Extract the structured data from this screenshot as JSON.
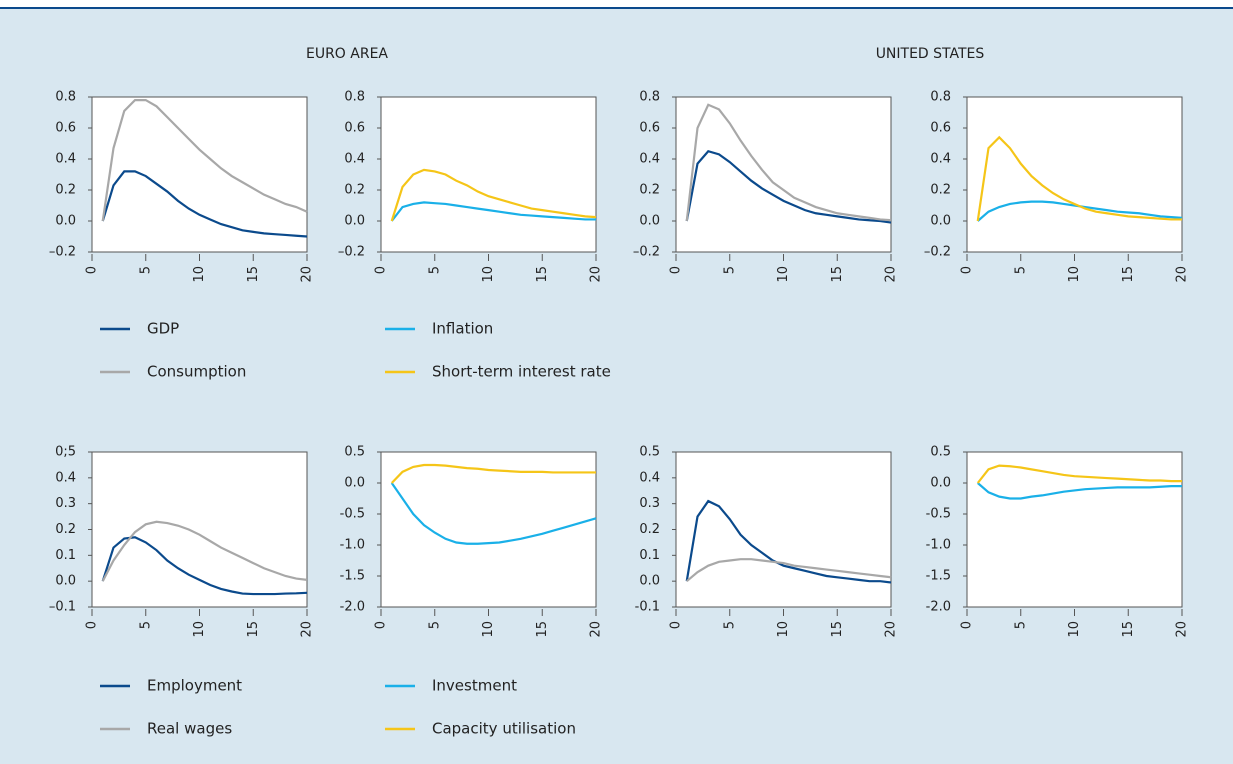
{
  "panel_titles": [
    "EURO AREA",
    "UNITED STATES"
  ],
  "chart_data": [
    {
      "type": "line",
      "x": [
        1,
        2,
        3,
        4,
        5,
        6,
        7,
        8,
        9,
        10,
        11,
        12,
        13,
        14,
        15,
        16,
        17,
        18,
        19,
        20
      ],
      "xlim": [
        0,
        20
      ],
      "xticks": [
        0,
        5,
        10,
        15,
        20
      ],
      "ylim": [
        -0.2,
        0.8
      ],
      "yticks": [
        {
          "value": -0.2,
          "label": "–0.2"
        },
        {
          "value": 0,
          "label": "0.0"
        },
        0.2,
        0.4,
        0.6,
        0.8
      ],
      "series": [
        {
          "name": "GDP",
          "color": "#0b4a8c",
          "values": [
            0,
            0.23,
            0.32,
            0.32,
            0.29,
            0.24,
            0.19,
            0.13,
            0.08,
            0.04,
            0.01,
            -0.02,
            -0.04,
            -0.06,
            -0.07,
            -0.08,
            -0.085,
            -0.09,
            -0.095,
            -0.1
          ]
        },
        {
          "name": "Consumption",
          "color": "#a8a8a8",
          "values": [
            0,
            0.47,
            0.71,
            0.78,
            0.78,
            0.74,
            0.67,
            0.6,
            0.53,
            0.46,
            0.4,
            0.34,
            0.29,
            0.25,
            0.21,
            0.17,
            0.14,
            0.11,
            0.09,
            0.06
          ]
        }
      ]
    },
    {
      "type": "line",
      "x": [
        1,
        2,
        3,
        4,
        5,
        6,
        7,
        8,
        9,
        10,
        11,
        12,
        13,
        14,
        15,
        16,
        17,
        18,
        19,
        20
      ],
      "xlim": [
        0,
        20
      ],
      "xticks": [
        0,
        5,
        10,
        15,
        20
      ],
      "ylim": [
        -0.2,
        0.8
      ],
      "yticks": [
        {
          "value": -0.2,
          "label": "–0.2"
        },
        {
          "value": 0,
          "label": "0.0"
        },
        0.2,
        0.4,
        0.6,
        0.8
      ],
      "series": [
        {
          "name": "Inflation",
          "color": "#1ab0e8",
          "values": [
            0,
            0.09,
            0.11,
            0.12,
            0.115,
            0.11,
            0.1,
            0.09,
            0.08,
            0.07,
            0.06,
            0.05,
            0.04,
            0.035,
            0.03,
            0.025,
            0.02,
            0.015,
            0.01,
            0.01
          ]
        },
        {
          "name": "Short-term interest rate",
          "color": "#f5c518",
          "values": [
            0,
            0.22,
            0.3,
            0.33,
            0.32,
            0.3,
            0.26,
            0.23,
            0.19,
            0.16,
            0.14,
            0.12,
            0.1,
            0.08,
            0.07,
            0.06,
            0.05,
            0.04,
            0.03,
            0.025
          ]
        }
      ]
    },
    {
      "type": "line",
      "x": [
        1,
        2,
        3,
        4,
        5,
        6,
        7,
        8,
        9,
        10,
        11,
        12,
        13,
        14,
        15,
        16,
        17,
        18,
        19,
        20
      ],
      "xlim": [
        0,
        20
      ],
      "xticks": [
        0,
        5,
        10,
        15,
        20
      ],
      "ylim": [
        -0.2,
        0.8
      ],
      "yticks": [
        {
          "value": -0.2,
          "label": "–0.2"
        },
        {
          "value": 0,
          "label": "0.0"
        },
        0.2,
        0.4,
        0.6,
        0.8
      ],
      "series": [
        {
          "name": "GDP",
          "color": "#0b4a8c",
          "values": [
            0,
            0.37,
            0.45,
            0.43,
            0.38,
            0.32,
            0.26,
            0.21,
            0.17,
            0.13,
            0.1,
            0.07,
            0.05,
            0.04,
            0.03,
            0.02,
            0.01,
            0.005,
            0,
            -0.01
          ]
        },
        {
          "name": "Consumption",
          "color": "#a8a8a8",
          "values": [
            0,
            0.6,
            0.75,
            0.72,
            0.63,
            0.52,
            0.42,
            0.33,
            0.25,
            0.2,
            0.15,
            0.12,
            0.09,
            0.07,
            0.05,
            0.04,
            0.03,
            0.02,
            0.01,
            0.005
          ]
        }
      ]
    },
    {
      "type": "line",
      "x": [
        1,
        2,
        3,
        4,
        5,
        6,
        7,
        8,
        9,
        10,
        11,
        12,
        13,
        14,
        15,
        16,
        17,
        18,
        19,
        20
      ],
      "xlim": [
        0,
        20
      ],
      "xticks": [
        0,
        5,
        10,
        15,
        20
      ],
      "ylim": [
        -0.2,
        0.8
      ],
      "yticks": [
        {
          "value": -0.2,
          "label": "–0.2"
        },
        {
          "value": 0,
          "label": "0.0"
        },
        0.2,
        0.4,
        0.6,
        0.8
      ],
      "series": [
        {
          "name": "Inflation",
          "color": "#1ab0e8",
          "values": [
            0,
            0.06,
            0.09,
            0.11,
            0.12,
            0.125,
            0.125,
            0.12,
            0.11,
            0.1,
            0.09,
            0.08,
            0.07,
            0.06,
            0.055,
            0.05,
            0.04,
            0.03,
            0.025,
            0.02
          ]
        },
        {
          "name": "Short-term interest rate",
          "color": "#f5c518",
          "values": [
            0,
            0.47,
            0.54,
            0.47,
            0.37,
            0.29,
            0.23,
            0.18,
            0.14,
            0.11,
            0.08,
            0.06,
            0.05,
            0.04,
            0.03,
            0.025,
            0.02,
            0.015,
            0.01,
            0.01
          ]
        }
      ]
    },
    {
      "type": "line",
      "x": [
        1,
        2,
        3,
        4,
        5,
        6,
        7,
        8,
        9,
        10,
        11,
        12,
        13,
        14,
        15,
        16,
        17,
        18,
        19,
        20
      ],
      "xlim": [
        0,
        20
      ],
      "xticks": [
        0,
        5,
        10,
        15,
        20
      ],
      "ylim": [
        -0.1,
        0.5
      ],
      "yticks": [
        {
          "value": -0.1,
          "label": "–0.1"
        },
        {
          "value": 0,
          "label": "0.0"
        },
        0.1,
        0.2,
        0.3,
        0.4,
        {
          "value": 0.5,
          "label": "0;5"
        }
      ],
      "series": [
        {
          "name": "Employment",
          "color": "#0b4a8c",
          "values": [
            0,
            0.13,
            0.165,
            0.17,
            0.15,
            0.12,
            0.08,
            0.05,
            0.025,
            0.005,
            -0.015,
            -0.03,
            -0.04,
            -0.048,
            -0.05,
            -0.05,
            -0.05,
            -0.048,
            -0.047,
            -0.045
          ]
        },
        {
          "name": "Real wages",
          "color": "#a8a8a8",
          "values": [
            0,
            0.08,
            0.14,
            0.19,
            0.22,
            0.23,
            0.225,
            0.215,
            0.2,
            0.18,
            0.155,
            0.13,
            0.11,
            0.09,
            0.07,
            0.05,
            0.035,
            0.02,
            0.01,
            0.005
          ]
        }
      ]
    },
    {
      "type": "line",
      "x": [
        1,
        2,
        3,
        4,
        5,
        6,
        7,
        8,
        9,
        10,
        11,
        12,
        13,
        14,
        15,
        16,
        17,
        18,
        19,
        20
      ],
      "xlim": [
        0,
        20
      ],
      "xticks": [
        0,
        5,
        10,
        15,
        20
      ],
      "ylim": [
        -2,
        0.5
      ],
      "yticks": [
        {
          "value": -2,
          "label": "-2.0"
        },
        -1.5,
        {
          "value": -1,
          "label": "-1.0"
        },
        -0.5,
        {
          "value": 0,
          "label": "0.0"
        },
        0.5
      ],
      "series": [
        {
          "name": "Investment",
          "color": "#1ab0e8",
          "values": [
            0,
            -0.25,
            -0.5,
            -0.68,
            -0.8,
            -0.9,
            -0.96,
            -0.98,
            -0.98,
            -0.97,
            -0.96,
            -0.93,
            -0.9,
            -0.86,
            -0.82,
            -0.77,
            -0.72,
            -0.67,
            -0.62,
            -0.57
          ]
        },
        {
          "name": "Capacity utilisation",
          "color": "#f5c518",
          "values": [
            0,
            0.18,
            0.26,
            0.29,
            0.29,
            0.28,
            0.26,
            0.24,
            0.23,
            0.21,
            0.2,
            0.19,
            0.18,
            0.18,
            0.18,
            0.17,
            0.17,
            0.17,
            0.17,
            0.17
          ]
        }
      ]
    },
    {
      "type": "line",
      "x": [
        1,
        2,
        3,
        4,
        5,
        6,
        7,
        8,
        9,
        10,
        11,
        12,
        13,
        14,
        15,
        16,
        17,
        18,
        19,
        20
      ],
      "xlim": [
        0,
        20
      ],
      "xticks": [
        0,
        5,
        10,
        15,
        20
      ],
      "ylim": [
        -0.1,
        0.5
      ],
      "yticks": [
        {
          "value": -0.1,
          "label": "-0.1"
        },
        {
          "value": 0,
          "label": "0.0"
        },
        0.1,
        0.2,
        0.3,
        0.4,
        0.5
      ],
      "series": [
        {
          "name": "Employment",
          "color": "#0b4a8c",
          "values": [
            0,
            0.25,
            0.31,
            0.29,
            0.24,
            0.18,
            0.14,
            0.11,
            0.08,
            0.06,
            0.05,
            0.04,
            0.03,
            0.02,
            0.015,
            0.01,
            0.005,
            0,
            0,
            -0.005
          ]
        },
        {
          "name": "Real wages",
          "color": "#a8a8a8",
          "values": [
            0,
            0.035,
            0.06,
            0.075,
            0.08,
            0.085,
            0.085,
            0.08,
            0.075,
            0.07,
            0.06,
            0.055,
            0.05,
            0.045,
            0.04,
            0.035,
            0.03,
            0.025,
            0.02,
            0.015
          ]
        }
      ]
    },
    {
      "type": "line",
      "x": [
        1,
        2,
        3,
        4,
        5,
        6,
        7,
        8,
        9,
        10,
        11,
        12,
        13,
        14,
        15,
        16,
        17,
        18,
        19,
        20
      ],
      "xlim": [
        0,
        20
      ],
      "xticks": [
        0,
        5,
        10,
        15,
        20
      ],
      "ylim": [
        -2,
        0.5
      ],
      "yticks": [
        {
          "value": -2,
          "label": "-2.0"
        },
        -1.5,
        {
          "value": -1,
          "label": "-1.0"
        },
        -0.5,
        {
          "value": 0,
          "label": "0.0"
        },
        0.5
      ],
      "series": [
        {
          "name": "Investment",
          "color": "#1ab0e8",
          "values": [
            0,
            -0.15,
            -0.22,
            -0.25,
            -0.25,
            -0.22,
            -0.2,
            -0.17,
            -0.14,
            -0.12,
            -0.1,
            -0.09,
            -0.08,
            -0.07,
            -0.07,
            -0.07,
            -0.07,
            -0.06,
            -0.05,
            -0.05
          ]
        },
        {
          "name": "Capacity utilisation",
          "color": "#f5c518",
          "values": [
            0,
            0.22,
            0.28,
            0.27,
            0.25,
            0.22,
            0.19,
            0.16,
            0.13,
            0.11,
            0.1,
            0.09,
            0.08,
            0.07,
            0.06,
            0.05,
            0.04,
            0.04,
            0.03,
            0.03
          ]
        }
      ]
    }
  ]
}
